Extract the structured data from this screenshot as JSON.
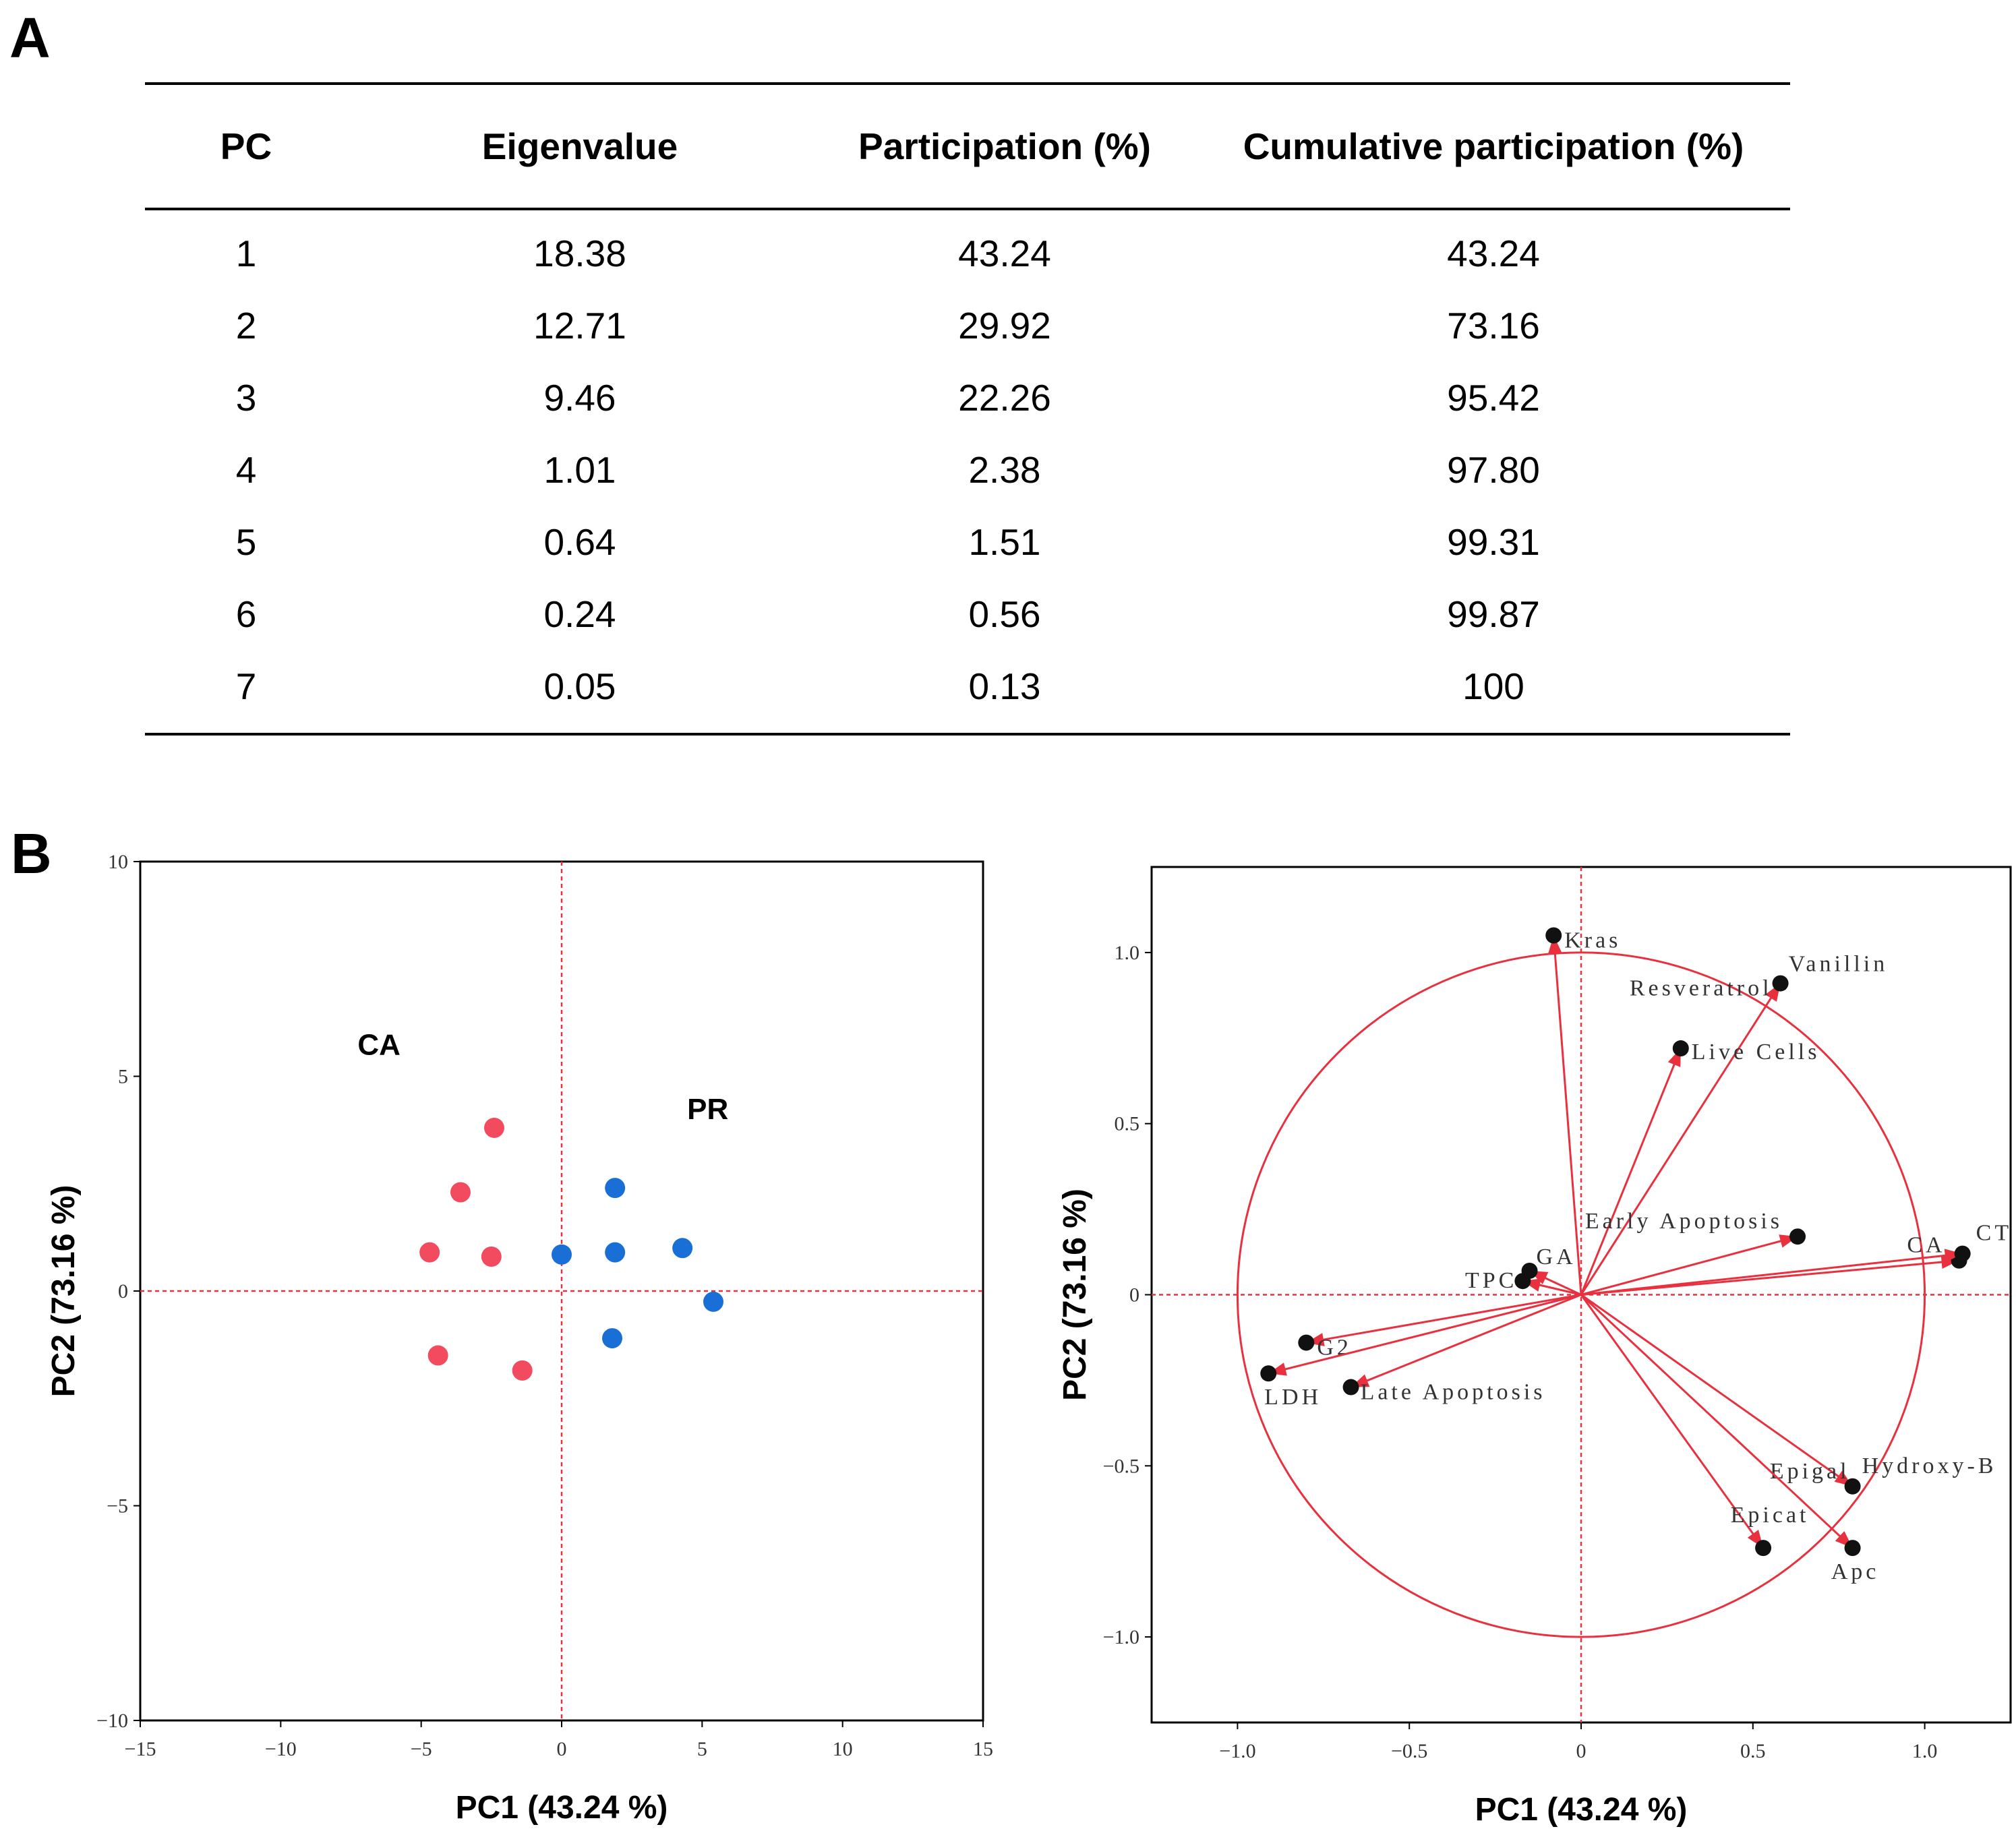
{
  "panel_a_label": "A",
  "panel_b_label": "B",
  "table": {
    "headers": [
      "PC",
      "Eigenvalue",
      "Participation (%)",
      "Cumulative participation (%)"
    ],
    "rows": [
      [
        "1",
        "18.38",
        "43.24",
        "43.24"
      ],
      [
        "2",
        "12.71",
        "29.92",
        "73.16"
      ],
      [
        "3",
        "9.46",
        "22.26",
        "95.42"
      ],
      [
        "4",
        "1.01",
        "2.38",
        "97.80"
      ],
      [
        "5",
        "0.64",
        "1.51",
        "99.31"
      ],
      [
        "6",
        "0.24",
        "0.56",
        "99.87"
      ],
      [
        "7",
        "0.05",
        "0.13",
        "100"
      ]
    ]
  },
  "chart_data": [
    {
      "type": "scatter",
      "title": "",
      "xlabel": "PC1 (43.24 %)",
      "ylabel": "PC2 (73.16 %)",
      "xlim": [
        -15,
        15
      ],
      "ylim": [
        -10,
        10
      ],
      "xticks": [
        -15,
        -10,
        -5,
        0,
        5,
        10,
        15
      ],
      "yticks": [
        -10,
        -5,
        0,
        5,
        10
      ],
      "tick_labels_x": [
        "−15",
        "−10",
        "−5",
        "0",
        "5",
        "10",
        "15"
      ],
      "tick_labels_y": [
        "−10",
        "−5",
        "0",
        "5",
        "10"
      ],
      "annotations": [
        {
          "text": "CA",
          "x": -6.5,
          "y": 5.5
        },
        {
          "text": "PR",
          "x": 5.2,
          "y": 4.0
        }
      ],
      "series": [
        {
          "name": "CA",
          "color": "#f24a5e",
          "points": [
            [
              -2.4,
              3.8
            ],
            [
              -3.6,
              2.3
            ],
            [
              -4.7,
              0.9
            ],
            [
              -2.5,
              0.8
            ],
            [
              -4.4,
              -1.5
            ],
            [
              -1.4,
              -1.85
            ]
          ]
        },
        {
          "name": "PR",
          "color": "#1a6fd6",
          "points": [
            [
              1.9,
              2.4
            ],
            [
              0.0,
              0.85
            ],
            [
              1.9,
              0.9
            ],
            [
              4.3,
              1.0
            ],
            [
              5.4,
              -0.25
            ],
            [
              1.8,
              -1.1
            ]
          ]
        }
      ]
    },
    {
      "type": "biplot",
      "title": "",
      "xlabel": "PC1 (43.24 %)",
      "ylabel": "PC2 (73.16 %)",
      "xlim": [
        -1.25,
        1.25
      ],
      "ylim": [
        -1.25,
        1.25
      ],
      "xticks": [
        -1.0,
        -0.5,
        0,
        0.5,
        1.0
      ],
      "yticks": [
        -1.0,
        -0.5,
        0,
        0.5,
        1.0
      ],
      "tick_labels_x": [
        "−1.0",
        "−0.5",
        "0",
        "0.5",
        "1.0"
      ],
      "tick_labels_y": [
        "−1.0",
        "−0.5",
        "0",
        "0.5",
        "1.0"
      ],
      "circle_radius": 1.0,
      "color": "#e8303f",
      "variables": [
        {
          "name": "Kras",
          "x": -0.08,
          "y": 1.05
        },
        {
          "name": "Vanillin",
          "x": 0.58,
          "y": 0.91
        },
        {
          "name": "Resveratrol",
          "x": 0.58,
          "y": 0.91
        },
        {
          "name": "Live Cells",
          "x": 0.29,
          "y": 0.72
        },
        {
          "name": "Early Apoptosis",
          "x": 0.63,
          "y": 0.17
        },
        {
          "name": "CA",
          "x": 1.1,
          "y": 0.1
        },
        {
          "name": "CT",
          "x": 1.11,
          "y": 0.12
        },
        {
          "name": "TPC",
          "x": -0.17,
          "y": 0.04
        },
        {
          "name": "GA",
          "x": -0.15,
          "y": 0.07
        },
        {
          "name": "G2",
          "x": -0.8,
          "y": -0.14
        },
        {
          "name": "LDH",
          "x": -0.91,
          "y": -0.23
        },
        {
          "name": "Late Apoptosis",
          "x": -0.67,
          "y": -0.27
        },
        {
          "name": "Epigal",
          "x": 0.79,
          "y": -0.56
        },
        {
          "name": "Hydroxy-B",
          "x": 0.79,
          "y": -0.56
        },
        {
          "name": "Epicat",
          "x": 0.53,
          "y": -0.74
        },
        {
          "name": "Apc",
          "x": 0.79,
          "y": -0.74
        }
      ]
    }
  ]
}
